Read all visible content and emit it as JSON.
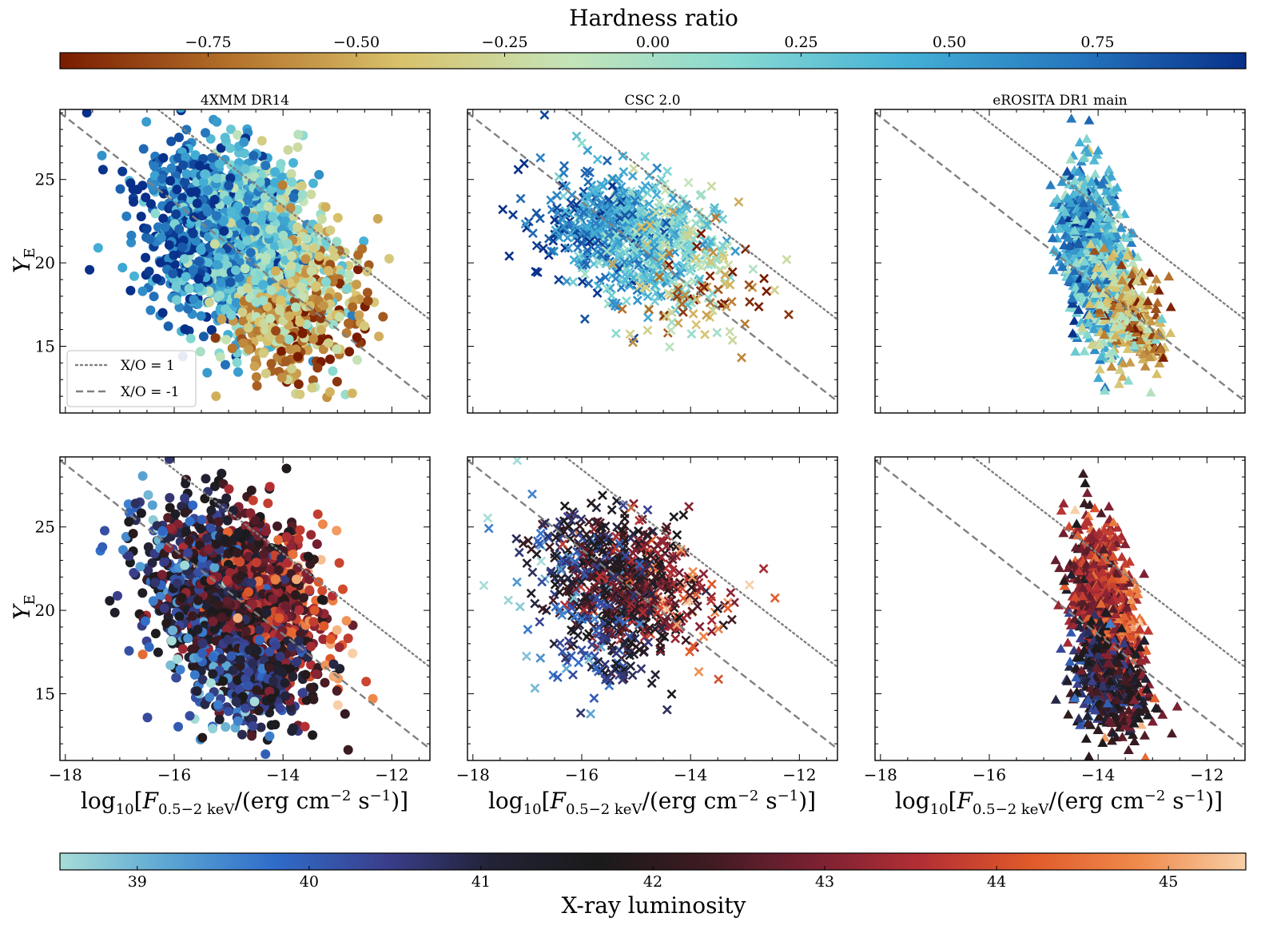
{
  "chart_data": {
    "type": "scatter",
    "colorbars": {
      "hardness": {
        "title": "Hardness ratio",
        "range": [
          -1.0,
          1.0
        ],
        "ticks": [
          -0.75,
          -0.5,
          -0.25,
          0.0,
          0.25,
          0.5,
          0.75
        ],
        "tick_labels": [
          "−0.75",
          "−0.50",
          "−0.25",
          "0.00",
          "0.25",
          "0.50",
          "0.75"
        ],
        "colors": [
          "#7a1c00",
          "#b3702a",
          "#d9c16a",
          "#c4e4b8",
          "#87d9d2",
          "#44b0d6",
          "#2576be",
          "#08308a"
        ]
      },
      "luminosity": {
        "title": "X-ray luminosity",
        "range": [
          38.55,
          45.45
        ],
        "ticks": [
          39,
          40,
          41,
          42,
          43,
          44,
          45
        ],
        "tick_labels": [
          "39",
          "40",
          "41",
          "42",
          "43",
          "44",
          "45"
        ],
        "colors": [
          "#a6ddd8",
          "#5ba6d3",
          "#2f6cc9",
          "#3a3f8d",
          "#222236",
          "#1a1a1a",
          "#3e1b22",
          "#7a2032",
          "#b42f34",
          "#e05a2a",
          "#ef8a4c",
          "#f8cfa6"
        ]
      }
    },
    "x": {
      "label": "log10[F0.5−2 keV/(erg cm−2 s−1)]",
      "ticks": [
        -18,
        -16,
        -14,
        -12
      ],
      "tick_labels": [
        "−18",
        "−16",
        "−14",
        "−12"
      ],
      "lim": [
        -18.1,
        -11.3
      ]
    },
    "y": {
      "label": "YE",
      "ticks": [
        15,
        20,
        25
      ],
      "tick_labels": [
        "15",
        "20",
        "25"
      ],
      "lim": [
        11.0,
        29.2
      ]
    },
    "reference_lines": [
      {
        "label": "X/O = 1",
        "style": "dotted",
        "points": [
          [
            -16.3,
            29.2
          ],
          [
            -11.3,
            16.6
          ]
        ]
      },
      {
        "label": "X/O = -1",
        "style": "dashed",
        "points": [
          [
            -18.1,
            29.0
          ],
          [
            -11.3,
            11.7
          ]
        ]
      }
    ],
    "legend": {
      "location": "lower-left",
      "entries": [
        "X/O = 1",
        "X/O = -1"
      ]
    },
    "panels": [
      {
        "title": "4XMM DR14",
        "row": "top",
        "color_by": "hardness",
        "marker": "circle",
        "clusters": [
          {
            "n": 1600,
            "x": [
              -14.9,
              0.8
            ],
            "y": [
              21.5,
              2.6
            ],
            "c": [
              0.45,
              0.32
            ],
            "tilt": -1.25
          },
          {
            "n": 220,
            "x": [
              -14.0,
              0.55
            ],
            "y": [
              15.8,
              1.5
            ],
            "c": [
              -0.6,
              0.28
            ],
            "tilt": -0.3
          },
          {
            "n": 160,
            "x": [
              -13.4,
              0.55
            ],
            "y": [
              19.0,
              1.7
            ],
            "c": [
              -0.3,
              0.25
            ],
            "tilt": -1.0
          }
        ]
      },
      {
        "title": "CSC 2.0",
        "row": "top",
        "color_by": "hardness",
        "marker": "cross",
        "clusters": [
          {
            "n": 750,
            "x": [
              -15.1,
              0.8
            ],
            "y": [
              21.6,
              1.8
            ],
            "c": [
              0.42,
              0.25
            ],
            "tilt": -0.9
          },
          {
            "n": 90,
            "x": [
              -14.0,
              0.7
            ],
            "y": [
              18.5,
              2.0
            ],
            "c": [
              -0.45,
              0.35
            ],
            "tilt": -1.0
          }
        ]
      },
      {
        "title": "eROSITA DR1 main",
        "row": "top",
        "color_by": "hardness",
        "marker": "triangle",
        "clusters": [
          {
            "n": 1100,
            "x": [
              -14.05,
              0.28
            ],
            "y": [
              20.3,
              2.4
            ],
            "c": [
              0.42,
              0.28
            ],
            "tilt": -4.5
          },
          {
            "n": 260,
            "x": [
              -13.4,
              0.35
            ],
            "y": [
              16.8,
              1.6
            ],
            "c": [
              -0.45,
              0.3
            ],
            "tilt": -2.0
          }
        ]
      },
      {
        "title": "",
        "row": "bottom",
        "color_by": "luminosity",
        "marker": "circle",
        "clusters": [
          {
            "n": 1500,
            "x": [
              -14.9,
              0.8
            ],
            "y": [
              21.0,
              2.5
            ],
            "c": [
              42.0,
              1.1
            ],
            "tilt": -1.3
          },
          {
            "n": 260,
            "x": [
              -14.5,
              0.6
            ],
            "y": [
              15.5,
              1.6
            ],
            "c": [
              40.8,
              0.9
            ],
            "tilt": -0.4
          }
        ]
      },
      {
        "title": "",
        "row": "bottom",
        "color_by": "luminosity",
        "marker": "cross",
        "clusters": [
          {
            "n": 750,
            "x": [
              -15.3,
              0.8
            ],
            "y": [
              21.8,
              1.9
            ],
            "c": [
              42.0,
              1.0
            ],
            "tilt": -1.0
          },
          {
            "n": 90,
            "x": [
              -15.6,
              0.6
            ],
            "y": [
              17.3,
              1.5
            ],
            "c": [
              40.6,
              0.6
            ],
            "tilt": -0.8
          }
        ]
      },
      {
        "title": "",
        "row": "bottom",
        "color_by": "luminosity",
        "marker": "triangle",
        "clusters": [
          {
            "n": 900,
            "x": [
              -13.9,
              0.3
            ],
            "y": [
              20.2,
              2.3
            ],
            "c": [
              43.5,
              0.7
            ],
            "tilt": -4.5
          },
          {
            "n": 420,
            "x": [
              -13.8,
              0.35
            ],
            "y": [
              15.6,
              1.6
            ],
            "c": [
              41.6,
              0.8
            ],
            "tilt": -2.0
          }
        ]
      }
    ]
  }
}
